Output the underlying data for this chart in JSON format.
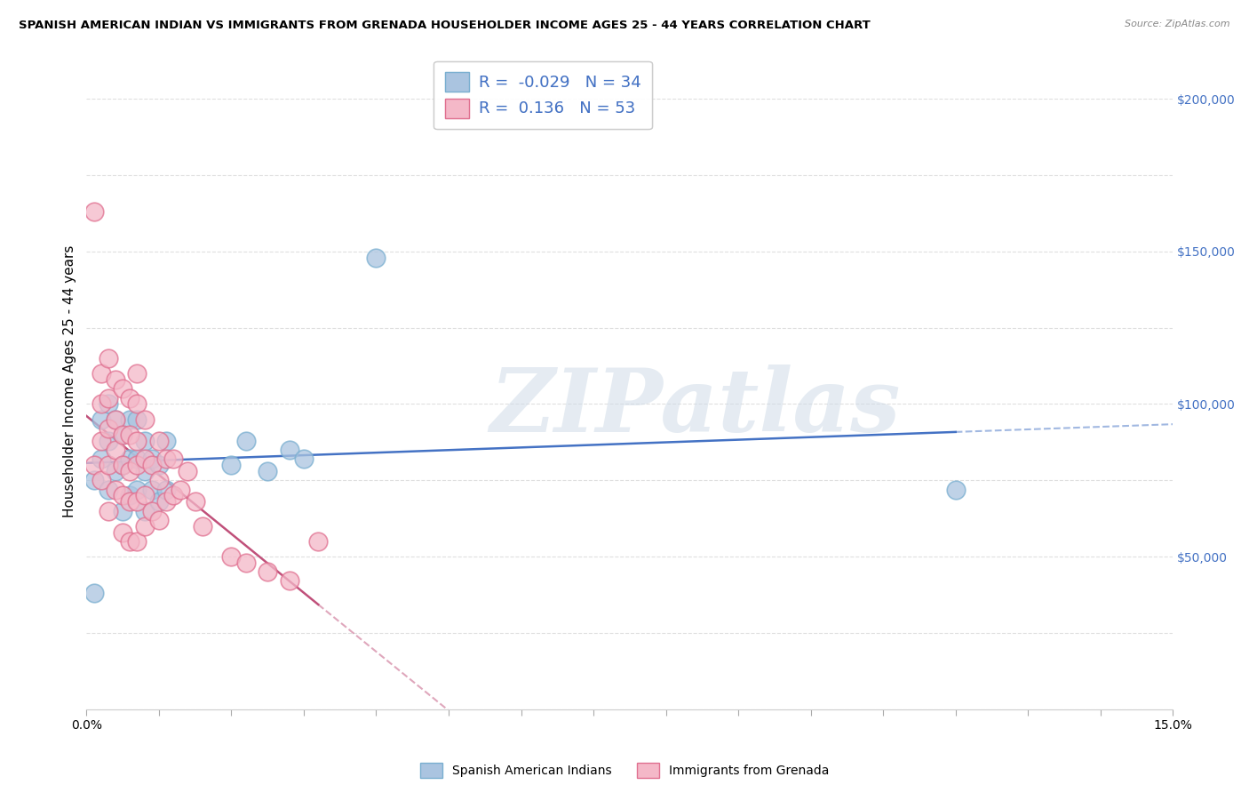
{
  "title": "SPANISH AMERICAN INDIAN VS IMMIGRANTS FROM GRENADA HOUSEHOLDER INCOME AGES 25 - 44 YEARS CORRELATION CHART",
  "source": "Source: ZipAtlas.com",
  "ylabel": "Householder Income Ages 25 - 44 years",
  "xlim": [
    0.0,
    0.15
  ],
  "ylim": [
    0,
    215000
  ],
  "yticks": [
    0,
    50000,
    100000,
    150000,
    200000
  ],
  "ytick_labels": [
    "",
    "$50,000",
    "$100,000",
    "$150,000",
    "$200,000"
  ],
  "background_color": "#ffffff",
  "grid_color": "#d8d8d8",
  "watermark_text": "ZIPatlas",
  "series": [
    {
      "name": "Spanish American Indians",
      "dot_color": "#aac4e0",
      "dot_edge_color": "#7aafd0",
      "R": -0.029,
      "N": 34,
      "trend_color": "#4472c4",
      "points_x": [
        0.001,
        0.001,
        0.002,
        0.002,
        0.003,
        0.003,
        0.003,
        0.004,
        0.004,
        0.005,
        0.005,
        0.005,
        0.006,
        0.006,
        0.006,
        0.007,
        0.007,
        0.007,
        0.008,
        0.008,
        0.008,
        0.009,
        0.009,
        0.01,
        0.01,
        0.011,
        0.011,
        0.02,
        0.022,
        0.025,
        0.028,
        0.03,
        0.04,
        0.12
      ],
      "points_y": [
        38000,
        75000,
        82000,
        95000,
        72000,
        88000,
        100000,
        78000,
        95000,
        65000,
        80000,
        90000,
        70000,
        82000,
        95000,
        72000,
        82000,
        95000,
        65000,
        78000,
        88000,
        72000,
        82000,
        68000,
        80000,
        72000,
        88000,
        80000,
        88000,
        78000,
        85000,
        82000,
        148000,
        72000
      ]
    },
    {
      "name": "Immigrants from Grenada",
      "dot_color": "#f4b8c8",
      "dot_edge_color": "#e07090",
      "R": 0.136,
      "N": 53,
      "trend_color": "#c0507a",
      "points_x": [
        0.001,
        0.001,
        0.002,
        0.002,
        0.002,
        0.002,
        0.003,
        0.003,
        0.003,
        0.003,
        0.003,
        0.004,
        0.004,
        0.004,
        0.004,
        0.005,
        0.005,
        0.005,
        0.005,
        0.005,
        0.006,
        0.006,
        0.006,
        0.006,
        0.006,
        0.007,
        0.007,
        0.007,
        0.007,
        0.007,
        0.007,
        0.008,
        0.008,
        0.008,
        0.008,
        0.009,
        0.009,
        0.01,
        0.01,
        0.01,
        0.011,
        0.011,
        0.012,
        0.012,
        0.013,
        0.014,
        0.015,
        0.016,
        0.02,
        0.022,
        0.025,
        0.028,
        0.032
      ],
      "points_y": [
        80000,
        163000,
        75000,
        88000,
        100000,
        110000,
        65000,
        80000,
        92000,
        102000,
        115000,
        72000,
        85000,
        95000,
        108000,
        58000,
        70000,
        80000,
        90000,
        105000,
        55000,
        68000,
        78000,
        90000,
        102000,
        55000,
        68000,
        80000,
        88000,
        100000,
        110000,
        60000,
        70000,
        82000,
        95000,
        65000,
        80000,
        62000,
        75000,
        88000,
        68000,
        82000,
        70000,
        82000,
        72000,
        78000,
        68000,
        60000,
        50000,
        48000,
        45000,
        42000,
        55000
      ]
    }
  ],
  "legend_text_color": "#4472c4",
  "title_fontsize": 9.5,
  "axis_label_fontsize": 11,
  "tick_fontsize": 10,
  "legend_fontsize": 13
}
